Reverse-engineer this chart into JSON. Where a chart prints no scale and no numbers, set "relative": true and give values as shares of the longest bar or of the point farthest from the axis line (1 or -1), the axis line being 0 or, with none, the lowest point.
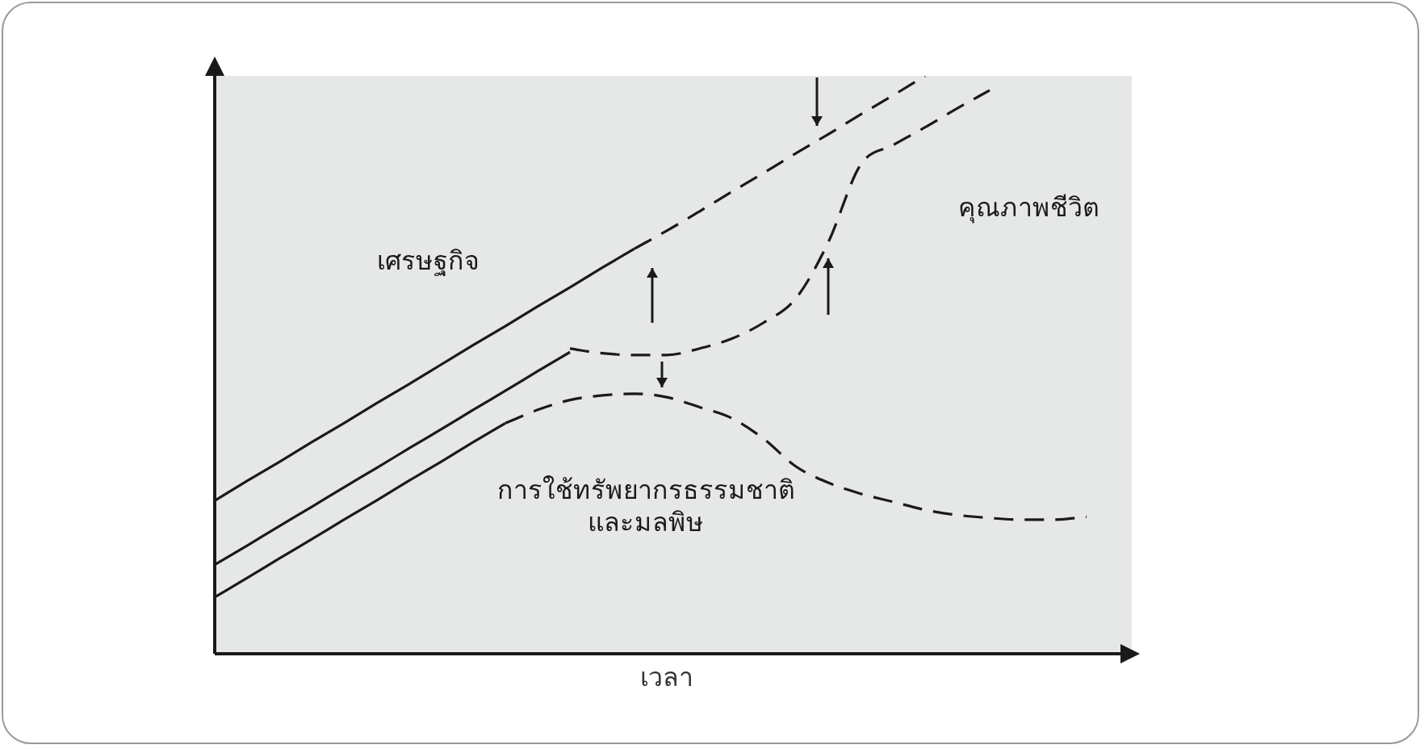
{
  "chart_data": {
    "type": "line",
    "relative": true,
    "xlabel": "เวลา",
    "categories": [
      null,
      null,
      null,
      null,
      null,
      null,
      null,
      null,
      null,
      null,
      null,
      null,
      null,
      null,
      null,
      null,
      null,
      null,
      null,
      null,
      null,
      null,
      null,
      null,
      null,
      null,
      null,
      null,
      null
    ],
    "legend": false,
    "marker": "none",
    "series": [
      {
        "name": "เศรษฐกิจ",
        "color": "#1a1a1a",
        "line_style": "solid",
        "values": [
          0.265,
          0.299,
          0.332,
          0.366,
          0.399,
          0.433,
          0.466,
          0.5,
          0.534,
          0.567,
          0.601,
          0.634,
          0.668,
          0.701,
          null,
          null,
          null,
          null,
          null,
          null,
          null,
          null,
          null,
          null,
          null,
          null,
          null,
          null,
          null
        ]
      },
      {
        "color": "#1a1a1a",
        "line_style": "dashed",
        "values": [
          null,
          null,
          null,
          null,
          null,
          null,
          null,
          null,
          null,
          null,
          null,
          null,
          null,
          0.701,
          0.732,
          0.765,
          0.799,
          0.832,
          0.866,
          0.899,
          0.933,
          0.966,
          1,
          null,
          null,
          null,
          null,
          null,
          null
        ]
      },
      {
        "color": "#1a1a1a",
        "line_style": "solid",
        "values": [
          0.154,
          0.187,
          0.221,
          0.254,
          0.288,
          0.321,
          0.355,
          0.388,
          0.422,
          0.455,
          0.489,
          0.522,
          null,
          null,
          null,
          null,
          null,
          null,
          null,
          null,
          null,
          null,
          null,
          null,
          null,
          null,
          null,
          null,
          null
        ]
      },
      {
        "name": "คุณภาพชีวิต",
        "color": "#1a1a1a",
        "line_style": "dashed",
        "values": [
          null,
          null,
          null,
          null,
          null,
          null,
          null,
          null,
          null,
          null,
          null,
          0.528,
          0.52,
          0.517,
          0.517,
          0.528,
          0.545,
          0.573,
          0.615,
          0.712,
          0.846,
          0.88,
          0.911,
          0.944,
          0.975,
          null,
          null,
          null,
          null
        ]
      },
      {
        "color": "#1a1a1a",
        "line_style": "solid",
        "values": [
          0.098,
          0.131,
          0.165,
          0.198,
          0.232,
          0.265,
          0.299,
          0.332,
          0.366,
          0.399,
          null,
          null,
          null,
          null,
          null,
          null,
          null,
          null,
          null,
          null,
          null,
          null,
          null,
          null,
          null,
          null,
          null,
          null,
          null
        ]
      },
      {
        "name": "การใช้ทรัพยากรธรรมชาติ\nและมลพิษ",
        "color": "#1a1a1a",
        "line_style": "dashed",
        "values": [
          null,
          null,
          null,
          null,
          null,
          null,
          null,
          null,
          null,
          0.399,
          0.422,
          0.439,
          0.447,
          0.45,
          0.444,
          0.427,
          0.408,
          0.372,
          0.324,
          0.296,
          0.277,
          0.263,
          0.249,
          0.24,
          0.235,
          0.232,
          0.232,
          0.237,
          null
        ]
      }
    ]
  }
}
